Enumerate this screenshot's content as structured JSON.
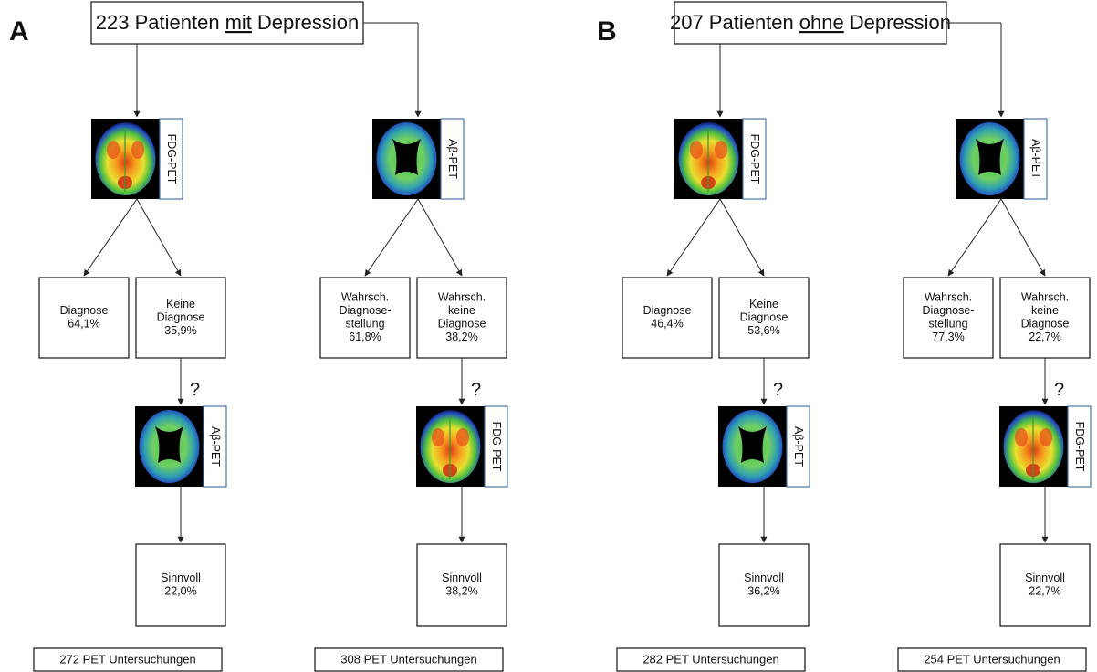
{
  "panels": [
    {
      "letter": "A",
      "header": {
        "before": "223 Patienten",
        "emphasis": "mit",
        "after": "Depression"
      },
      "columns": [
        {
          "first_scan": "FDG-PET",
          "outcomes": [
            {
              "lines": [
                "Diagnose",
                "64,1%"
              ]
            },
            {
              "lines": [
                "Keine",
                "Diagnose",
                "35,9%"
              ]
            }
          ],
          "question": "?",
          "second_scan": "Aβ-PET",
          "result": [
            "Sinnvoll",
            "22,0%"
          ],
          "total": "272 PET Untersuchungen"
        },
        {
          "first_scan": "Aβ-PET",
          "outcomes": [
            {
              "lines": [
                "Wahrsch.",
                "Diagnose-",
                "stellung",
                "61,8%"
              ]
            },
            {
              "lines": [
                "Wahrsch.",
                "keine",
                "Diagnose",
                "38,2%"
              ]
            }
          ],
          "question": "?",
          "second_scan": "FDG-PET",
          "result": [
            "Sinnvoll",
            "38,2%"
          ],
          "total": "308 PET Untersuchungen"
        }
      ]
    },
    {
      "letter": "B",
      "header": {
        "before": "207 Patienten",
        "emphasis": "ohne",
        "after": "Depression"
      },
      "columns": [
        {
          "first_scan": "FDG-PET",
          "outcomes": [
            {
              "lines": [
                "Diagnose",
                "46,4%"
              ]
            },
            {
              "lines": [
                "Keine",
                "Diagnose",
                "53,6%"
              ]
            }
          ],
          "question": "?",
          "second_scan": "Aβ-PET",
          "result": [
            "Sinnvoll",
            "36,2%"
          ],
          "total": "282 PET Untersuchungen"
        },
        {
          "first_scan": "Aβ-PET",
          "outcomes": [
            {
              "lines": [
                "Wahrsch.",
                "Diagnose-",
                "stellung",
                "77,3%"
              ]
            },
            {
              "lines": [
                "Wahrsch.",
                "keine",
                "Diagnose",
                "22,7%"
              ]
            }
          ],
          "question": "?",
          "second_scan": "FDG-PET",
          "result": [
            "Sinnvoll",
            "22,7%"
          ],
          "total": "254 PET Untersuchungen"
        }
      ]
    }
  ]
}
